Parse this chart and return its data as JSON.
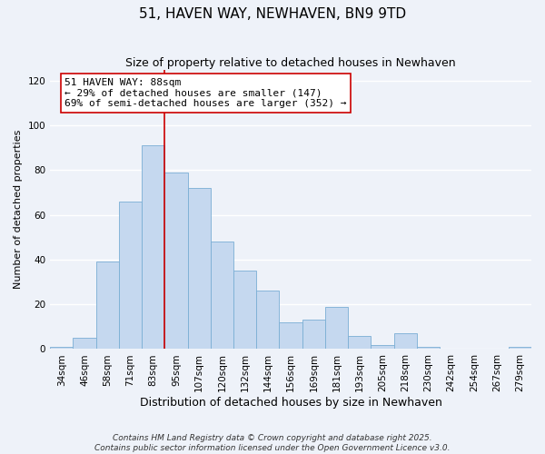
{
  "title": "51, HAVEN WAY, NEWHAVEN, BN9 9TD",
  "subtitle": "Size of property relative to detached houses in Newhaven",
  "xlabel": "Distribution of detached houses by size in Newhaven",
  "ylabel": "Number of detached properties",
  "bar_labels": [
    "34sqm",
    "46sqm",
    "58sqm",
    "71sqm",
    "83sqm",
    "95sqm",
    "107sqm",
    "120sqm",
    "132sqm",
    "144sqm",
    "156sqm",
    "169sqm",
    "181sqm",
    "193sqm",
    "205sqm",
    "218sqm",
    "230sqm",
    "242sqm",
    "254sqm",
    "267sqm",
    "279sqm"
  ],
  "bar_values": [
    1,
    5,
    39,
    66,
    91,
    79,
    72,
    48,
    35,
    26,
    12,
    13,
    19,
    6,
    2,
    7,
    1,
    0,
    0,
    0,
    1
  ],
  "bar_color": "#c5d8ef",
  "bar_edge_color": "#7aaed4",
  "ylim": [
    0,
    125
  ],
  "yticks": [
    0,
    20,
    40,
    60,
    80,
    100,
    120
  ],
  "vline_index": 4.5,
  "annotation_title": "51 HAVEN WAY: 88sqm",
  "annotation_line1": "← 29% of detached houses are smaller (147)",
  "annotation_line2": "69% of semi-detached houses are larger (352) →",
  "annotation_box_color": "#ffffff",
  "annotation_box_edge": "#cc0000",
  "vline_color": "#cc0000",
  "footer1": "Contains HM Land Registry data © Crown copyright and database right 2025.",
  "footer2": "Contains public sector information licensed under the Open Government Licence v3.0.",
  "bg_color": "#eef2f9",
  "plot_bg_color": "#eef2f9",
  "grid_color": "#ffffff",
  "title_fontsize": 11,
  "subtitle_fontsize": 9,
  "xlabel_fontsize": 9,
  "ylabel_fontsize": 8,
  "tick_fontsize": 7.5,
  "annotation_fontsize": 8,
  "footer_fontsize": 6.5
}
